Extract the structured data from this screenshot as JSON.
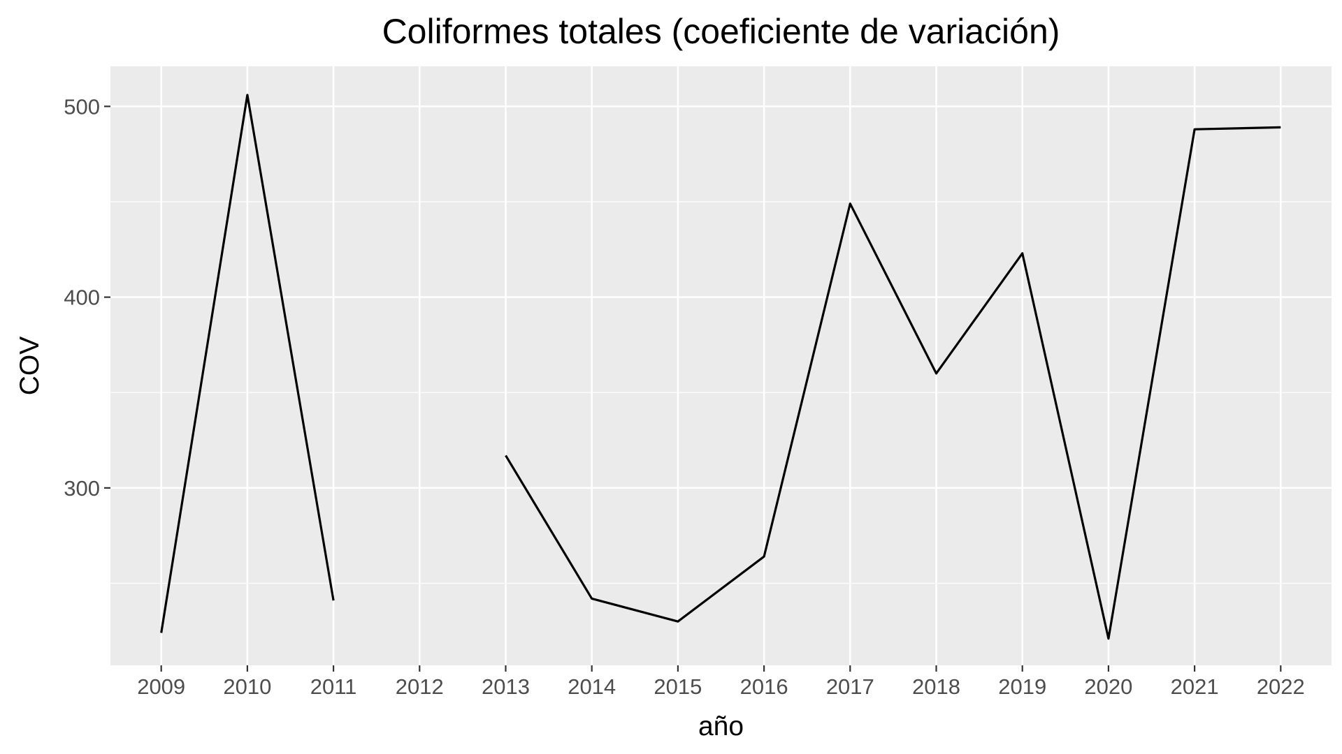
{
  "chart_data": {
    "type": "line",
    "title": "Coliformes totales (coeficiente de variación)",
    "xlabel": "año",
    "ylabel": "COV",
    "x": [
      2009,
      2010,
      2011,
      2012,
      2013,
      2014,
      2015,
      2016,
      2017,
      2018,
      2019,
      2020,
      2021,
      2022
    ],
    "x_tick_labels": [
      "2009",
      "2010",
      "2011",
      "2012",
      "2013",
      "2014",
      "2015",
      "2016",
      "2017",
      "2018",
      "2019",
      "2020",
      "2021",
      "2022"
    ],
    "y_ticks": [
      300,
      400,
      500
    ],
    "y_tick_labels": [
      "300",
      "400",
      "500"
    ],
    "ylim": [
      207,
      521
    ],
    "xlim": [
      2008.41,
      2022.59
    ],
    "grid": true,
    "series": [
      {
        "values": [
          224,
          506,
          241,
          null,
          317,
          242,
          230,
          264,
          449,
          360,
          423,
          221,
          488,
          489
        ]
      }
    ],
    "colors": {
      "panel_background": "#ebebeb",
      "gridline": "#ffffff",
      "line": "#000000",
      "tick_label": "#4d4d4d",
      "tick_mark": "#333333",
      "text": "#000000"
    }
  }
}
